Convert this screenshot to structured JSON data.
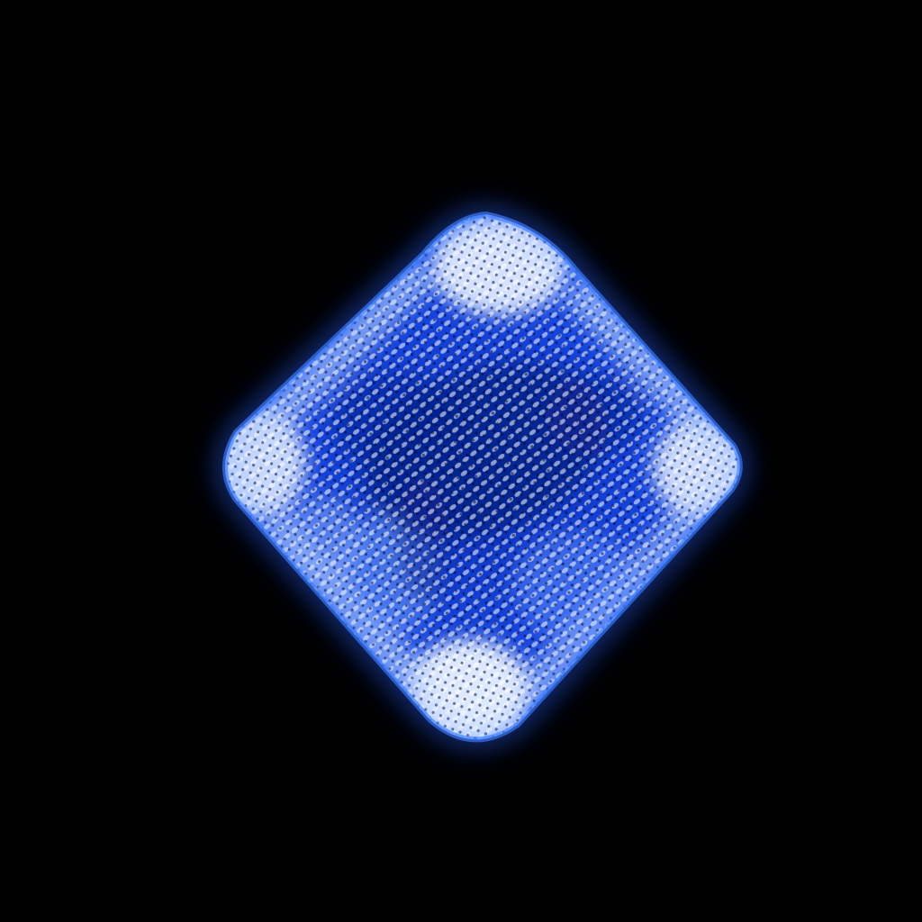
{
  "image": {
    "subject": "glowing-blue-diamond",
    "background_color": "#000000",
    "colors": {
      "core_highlight": "#e8f2ff",
      "bright_blue": "#3a7cff",
      "mid_blue": "#1446e6",
      "deep_blue": "#0a2aa8",
      "shadow_blue": "#061a6e"
    }
  }
}
